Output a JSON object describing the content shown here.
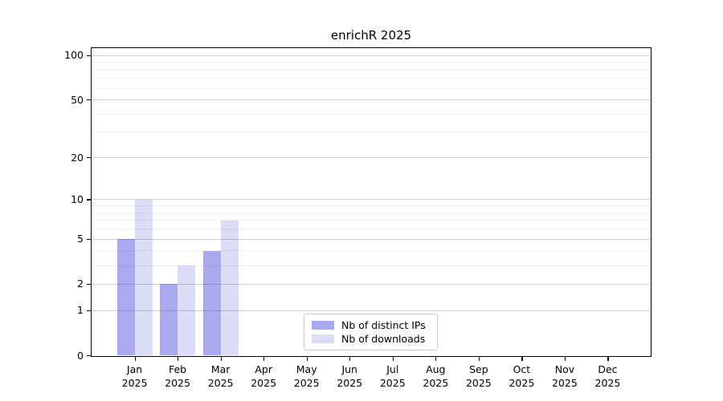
{
  "figure": {
    "background": "#ffffff"
  },
  "chart_data": {
    "type": "bar",
    "title": "enrichR 2025",
    "categories": [
      [
        "Jan",
        "2025"
      ],
      [
        "Feb",
        "2025"
      ],
      [
        "Mar",
        "2025"
      ],
      [
        "Apr",
        "2025"
      ],
      [
        "May",
        "2025"
      ],
      [
        "Jun",
        "2025"
      ],
      [
        "Jul",
        "2025"
      ],
      [
        "Aug",
        "2025"
      ],
      [
        "Sep",
        "2025"
      ],
      [
        "Oct",
        "2025"
      ],
      [
        "Nov",
        "2025"
      ],
      [
        "Dec",
        "2025"
      ]
    ],
    "series": [
      {
        "name": "Nb of distinct IPs",
        "color": "#aaaaf0",
        "values": [
          5,
          2,
          4,
          0,
          0,
          0,
          0,
          0,
          0,
          0,
          0,
          0
        ]
      },
      {
        "name": "Nb of downloads",
        "color": "#dcdcf6",
        "values": [
          10,
          3,
          7,
          0,
          0,
          0,
          0,
          0,
          0,
          0,
          0,
          0
        ]
      }
    ],
    "xlabel": "",
    "ylabel": "",
    "yscale": "log10(value+1)",
    "ylim": [
      0,
      112
    ],
    "yticks": [
      0,
      1,
      2,
      5,
      10,
      20,
      50,
      100
    ],
    "yticks_minor": [
      3,
      4,
      6,
      7,
      8,
      9,
      30,
      40,
      60,
      70,
      80,
      90
    ],
    "grid": true,
    "legend_position": "lower center"
  },
  "colors": {
    "axis_border": "#000000",
    "grid_major": "rgba(0,0,0,0.17)",
    "grid_minor": "rgba(0,0,0,0.06)",
    "legend_border": "#cccccc",
    "text": "#000000"
  }
}
